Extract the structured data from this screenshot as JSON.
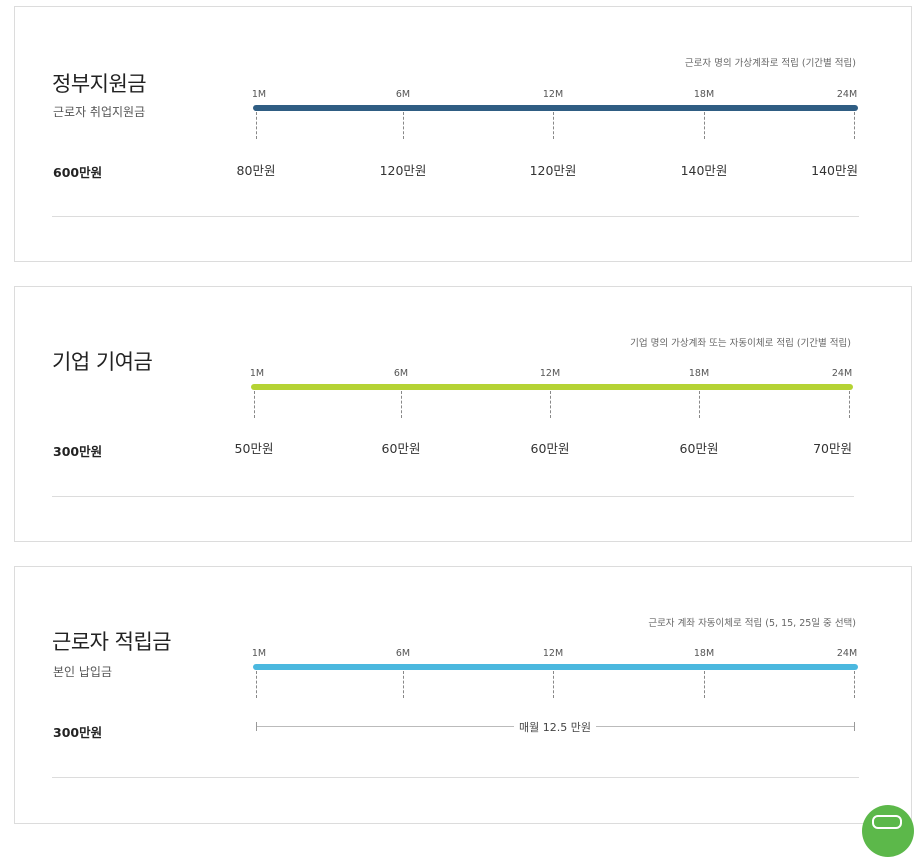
{
  "ticks": [
    "1M",
    "6M",
    "12M",
    "18M",
    "24M"
  ],
  "sections": [
    {
      "title": "정부지원금",
      "subtitle": "근로자 취업지원금",
      "note": "근로자 명의 가상계좌로 적립 (기간별 적립)",
      "total": "600만원",
      "bar_color": "#2f5d83",
      "amounts": [
        "80만원",
        "120만원",
        "120만원",
        "140만원",
        "140만원"
      ]
    },
    {
      "title": "기업 기여금",
      "note": "기업 명의 가상계좌 또는 자동이체로 적립 (기간별 적립)",
      "total": "300만원",
      "bar_color": "#b5d334",
      "amounts": [
        "50만원",
        "60만원",
        "60만원",
        "60만원",
        "70만원"
      ]
    },
    {
      "title": "근로자 적립금",
      "subtitle": "본인 납입금",
      "note": "근로자 계좌 자동이체로 적립 (5, 15, 25일 중 선택)",
      "total": "300만원",
      "bar_color": "#4bb8df",
      "monthly": "매월 12.5 만원"
    }
  ],
  "chatbot": {
    "icon": "chatbot-icon",
    "color": "#5cb84a"
  }
}
